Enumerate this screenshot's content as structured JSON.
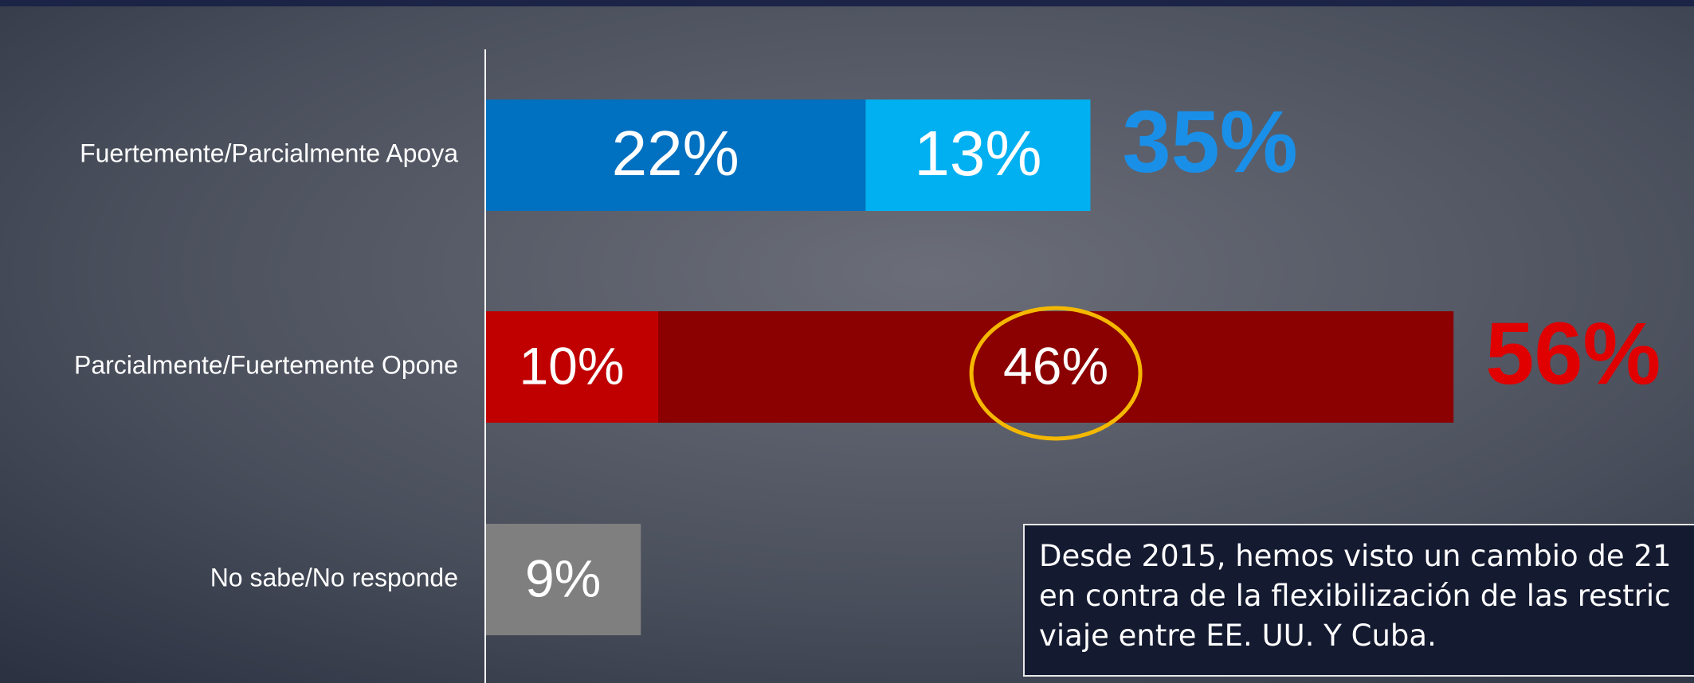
{
  "chart_data": {
    "type": "stacked-bar-horizontal",
    "categories": [
      "Fuertemente/Parcialmente Apoya",
      "Parcialmente/Fuertemente Opone",
      "No sabe/No responde"
    ],
    "series": [
      {
        "values": [
          22,
          10,
          9
        ],
        "value_labels": [
          "22%",
          "10%",
          "9%"
        ],
        "colors": [
          "#0070c0",
          "#c00000",
          "#7f7f7f"
        ]
      },
      {
        "values": [
          13,
          46,
          null
        ],
        "value_labels": [
          "13%",
          "46%",
          null
        ],
        "colors": [
          "#00b0f0",
          "#8b0000",
          null
        ]
      }
    ],
    "totals": [
      35,
      56,
      null
    ],
    "total_labels": [
      "35%",
      "56%",
      null
    ],
    "total_colors": [
      "#1a8fe8",
      "#e00000",
      null
    ],
    "highlight": {
      "series": 1,
      "index": 1,
      "color": "#f5b800"
    },
    "note": [
      "Desde 2015, hemos visto un cambio de 21",
      "en contra de la flexibilización de las restric",
      "viaje entre EE. UU. Y Cuba."
    ]
  }
}
